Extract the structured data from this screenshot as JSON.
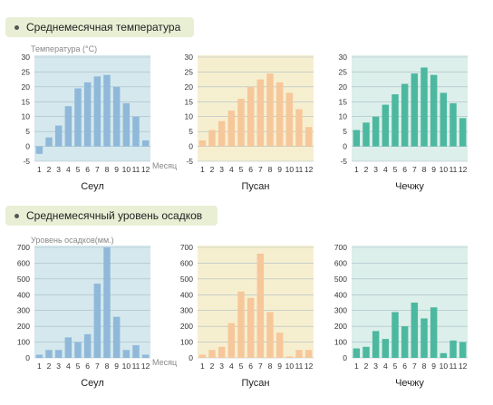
{
  "sections": {
    "temperature_title": "Среднемесячная температура",
    "precipitation_title": "Среднемесячный уровень осадков"
  },
  "colors": {
    "seoul_bg": "#d4e8ee",
    "seoul_bar": "#8fb8d9",
    "busan_bg": "#f6efcf",
    "busan_bar": "#f6c79a",
    "jeju_bg": "#dcefea",
    "jeju_bar": "#4cb8a0",
    "grid": "#a9bcc6"
  },
  "chart_data": [
    {
      "type": "bar",
      "id": "temp-seoul",
      "group": "temperature",
      "title": "Сеул",
      "ylabel": "Температура (°C)",
      "xlabel": "Месяц",
      "categories": [
        "1",
        "2",
        "3",
        "4",
        "5",
        "6",
        "7",
        "8",
        "9",
        "10",
        "11",
        "12"
      ],
      "values": [
        -2.5,
        3,
        7,
        13.5,
        19.5,
        21.5,
        23.5,
        24,
        20,
        14.5,
        10,
        2
      ],
      "ylim": [
        -5,
        30
      ],
      "yticks": [
        -5,
        0,
        5,
        10,
        15,
        20,
        25,
        30
      ],
      "grid": true
    },
    {
      "type": "bar",
      "id": "temp-busan",
      "group": "temperature",
      "title": "Пусан",
      "ylabel": "",
      "xlabel": "",
      "categories": [
        "1",
        "2",
        "3",
        "4",
        "5",
        "6",
        "7",
        "8",
        "9",
        "10",
        "11",
        "12"
      ],
      "values": [
        2,
        5.5,
        8.5,
        12,
        16,
        20,
        22.5,
        24.5,
        21.5,
        18,
        12.5,
        6.5
      ],
      "ylim": [
        -5,
        30
      ],
      "yticks": [
        -5,
        0,
        5,
        10,
        15,
        20,
        25,
        30
      ],
      "grid": true
    },
    {
      "type": "bar",
      "id": "temp-jeju",
      "group": "temperature",
      "title": "Чечжу",
      "ylabel": "",
      "xlabel": "",
      "categories": [
        "1",
        "2",
        "3",
        "4",
        "5",
        "6",
        "7",
        "8",
        "9",
        "10",
        "11",
        "12"
      ],
      "values": [
        5.5,
        8,
        10,
        14,
        17.5,
        21,
        24.5,
        26.5,
        24,
        18,
        14.5,
        9.5
      ],
      "ylim": [
        -5,
        30
      ],
      "yticks": [
        -5,
        0,
        5,
        10,
        15,
        20,
        25,
        30
      ],
      "grid": true
    },
    {
      "type": "bar",
      "id": "precip-seoul",
      "group": "precipitation",
      "title": "Сеул",
      "ylabel": "Уровень осадков(мм.)",
      "xlabel": "Месяц",
      "categories": [
        "1",
        "2",
        "3",
        "4",
        "5",
        "6",
        "7",
        "8",
        "9",
        "10",
        "11",
        "12"
      ],
      "values": [
        20,
        50,
        50,
        130,
        100,
        150,
        470,
        700,
        260,
        50,
        80,
        20
      ],
      "ylim": [
        0,
        700
      ],
      "yticks": [
        0,
        100,
        200,
        300,
        400,
        500,
        600,
        700
      ],
      "grid": true
    },
    {
      "type": "bar",
      "id": "precip-busan",
      "group": "precipitation",
      "title": "Пусан",
      "ylabel": "",
      "xlabel": "",
      "categories": [
        "1",
        "2",
        "3",
        "4",
        "5",
        "6",
        "7",
        "8",
        "9",
        "10",
        "11",
        "12"
      ],
      "values": [
        20,
        50,
        70,
        220,
        420,
        380,
        660,
        290,
        160,
        10,
        50,
        50
      ],
      "ylim": [
        0,
        700
      ],
      "yticks": [
        0,
        100,
        200,
        300,
        400,
        500,
        600,
        700
      ],
      "grid": true
    },
    {
      "type": "bar",
      "id": "precip-jeju",
      "group": "precipitation",
      "title": "Чечжу",
      "ylabel": "",
      "xlabel": "",
      "categories": [
        "1",
        "2",
        "3",
        "4",
        "5",
        "6",
        "7",
        "8",
        "9",
        "10",
        "11",
        "12"
      ],
      "values": [
        60,
        70,
        170,
        120,
        290,
        200,
        350,
        250,
        320,
        30,
        110,
        100
      ],
      "ylim": [
        0,
        700
      ],
      "yticks": [
        0,
        100,
        200,
        300,
        400,
        500,
        600,
        700
      ],
      "grid": true
    }
  ]
}
